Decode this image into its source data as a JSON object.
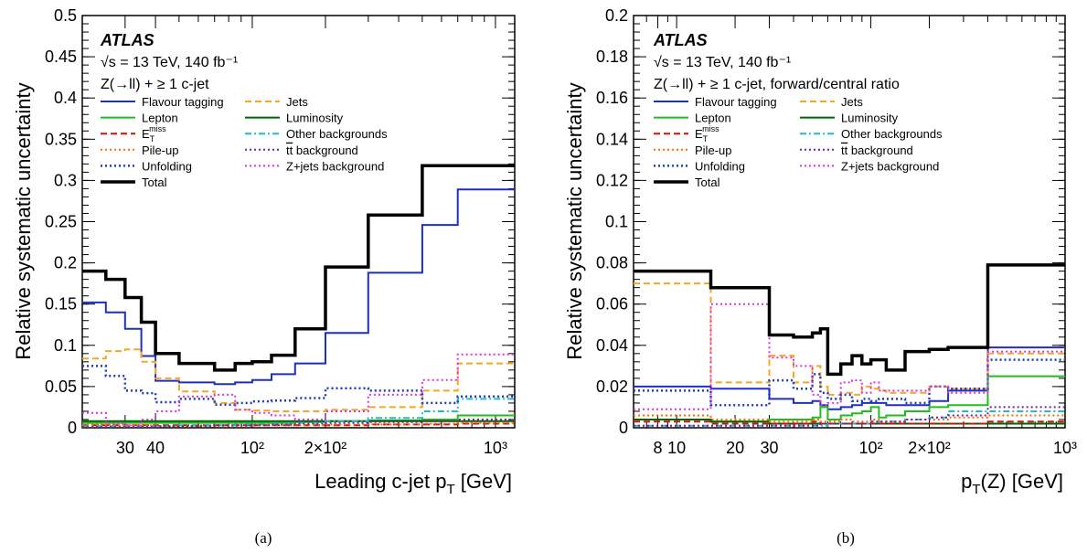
{
  "legend_labels": [
    "Flavour tagging",
    "Jets",
    "Lepton",
    "Luminosity",
    "E_T^miss",
    "Other backgrounds",
    "Pile-up",
    "tt background",
    "Unfolding",
    "Z+jets background",
    "Total"
  ],
  "chart_data": [
    {
      "type": "line",
      "subtitle": "(a)",
      "title": "ATLAS",
      "annotations": [
        "√s = 13 TeV, 140 fb⁻¹",
        "Z(→ll) + ≥ 1 c-jet"
      ],
      "xlabel": "Leading c-jet p_T [GeV]",
      "ylabel": "Relative systematic uncertainty",
      "xscale": "log",
      "xlim": [
        20,
        1200
      ],
      "ylim": [
        0,
        0.5
      ],
      "x_tick_labels": [
        "30",
        "40",
        "10²",
        "2×10²",
        "10³"
      ],
      "y_tick_labels": [
        "0",
        "0.05",
        "0.1",
        "0.15",
        "0.2",
        "0.25",
        "0.3",
        "0.35",
        "0.4",
        "0.45",
        "0.5"
      ],
      "legend_position": "top-left",
      "grid": false,
      "bin_edges": [
        20,
        25,
        30,
        35,
        40,
        50,
        70,
        85,
        100,
        120,
        150,
        200,
        300,
        500,
        700,
        1200
      ],
      "series": [
        {
          "name": "Flavour tagging",
          "color": "#1f2fbf",
          "style": "solid",
          "width": 2,
          "values": [
            0.152,
            0.14,
            0.12,
            0.087,
            0.057,
            0.055,
            0.053,
            0.055,
            0.058,
            0.065,
            0.078,
            0.115,
            0.188,
            0.246,
            0.289
          ]
        },
        {
          "name": "Jets",
          "color": "#f5a623",
          "style": "dashed",
          "width": 2,
          "values": [
            0.084,
            0.093,
            0.095,
            0.08,
            0.06,
            0.044,
            0.03,
            0.022,
            0.021,
            0.02,
            0.02,
            0.022,
            0.025,
            0.045,
            0.078
          ]
        },
        {
          "name": "Lepton",
          "color": "#22bb22",
          "style": "solid",
          "width": 2,
          "values": [
            0.006,
            0.006,
            0.006,
            0.006,
            0.006,
            0.006,
            0.006,
            0.006,
            0.006,
            0.006,
            0.007,
            0.008,
            0.009,
            0.01,
            0.015
          ]
        },
        {
          "name": "Luminosity",
          "color": "#006400",
          "style": "solid",
          "width": 2,
          "values": [
            0.008,
            0.008,
            0.008,
            0.008,
            0.008,
            0.008,
            0.008,
            0.008,
            0.008,
            0.008,
            0.008,
            0.008,
            0.008,
            0.008,
            0.008
          ]
        },
        {
          "name": "E_T^miss",
          "color": "#cc1111",
          "style": "dashed",
          "width": 2,
          "values": [
            0.003,
            0.003,
            0.003,
            0.003,
            0.003,
            0.003,
            0.003,
            0.003,
            0.003,
            0.003,
            0.003,
            0.003,
            0.004,
            0.004,
            0.005
          ]
        },
        {
          "name": "Other backgrounds",
          "color": "#22bbcc",
          "style": "dashdot",
          "width": 2,
          "values": [
            0.002,
            0.002,
            0.002,
            0.002,
            0.002,
            0.003,
            0.003,
            0.004,
            0.004,
            0.005,
            0.006,
            0.008,
            0.012,
            0.02,
            0.035
          ]
        },
        {
          "name": "Pile-up",
          "color": "#ff6a00",
          "style": "dotted",
          "width": 2,
          "values": [
            0.004,
            0.003,
            0.003,
            0.003,
            0.002,
            0.002,
            0.002,
            0.002,
            0.003,
            0.003,
            0.003,
            0.004,
            0.004,
            0.005,
            0.006
          ]
        },
        {
          "name": "tt background",
          "color": "#7a1fa2",
          "style": "dotted",
          "width": 2,
          "values": [
            0.001,
            0.001,
            0.001,
            0.001,
            0.002,
            0.002,
            0.003,
            0.003,
            0.003,
            0.004,
            0.005,
            0.006,
            0.007,
            0.008,
            0.01
          ]
        },
        {
          "name": "Unfolding",
          "color": "#1c3dbf",
          "style": "dotted",
          "width": 2.5,
          "values": [
            0.075,
            0.063,
            0.045,
            0.042,
            0.031,
            0.035,
            0.028,
            0.03,
            0.032,
            0.033,
            0.036,
            0.048,
            0.045,
            0.03,
            0.038
          ]
        },
        {
          "name": "Z+jets background",
          "color": "#e033e0",
          "style": "dotted",
          "width": 2,
          "values": [
            0.018,
            0.005,
            0.003,
            0.01,
            0.02,
            0.038,
            0.04,
            0.022,
            0.018,
            0.015,
            0.01,
            0.02,
            0.04,
            0.058,
            0.089
          ]
        },
        {
          "name": "Total",
          "color": "#000000",
          "style": "solid",
          "width": 3.5,
          "values": [
            0.19,
            0.18,
            0.158,
            0.128,
            0.09,
            0.078,
            0.07,
            0.078,
            0.08,
            0.088,
            0.12,
            0.195,
            0.258,
            0.318,
            0.318
          ]
        }
      ]
    },
    {
      "type": "line",
      "subtitle": "(b)",
      "title": "ATLAS",
      "annotations": [
        "√s = 13 TeV, 140 fb⁻¹",
        "Z(→ll) + ≥ 1 c-jet, forward/central ratio"
      ],
      "xlabel": "p_T(Z) [GeV]",
      "ylabel": "Relative systematic uncertainty",
      "xscale": "log",
      "xlim": [
        6,
        1000
      ],
      "ylim": [
        0,
        0.2
      ],
      "x_tick_labels": [
        "8",
        "10",
        "20",
        "30",
        "10²",
        "2×10²",
        "10³"
      ],
      "y_tick_labels": [
        "0",
        "0.02",
        "0.04",
        "0.06",
        "0.08",
        "0.1",
        "0.12",
        "0.14",
        "0.16",
        "0.18",
        "0.2"
      ],
      "legend_position": "top-left",
      "grid": false,
      "bin_edges": [
        6,
        15,
        30,
        40,
        50,
        55,
        60,
        70,
        80,
        90,
        100,
        110,
        120,
        150,
        200,
        250,
        400,
        1000
      ],
      "series": [
        {
          "name": "Flavour tagging",
          "color": "#1f2fbf",
          "style": "solid",
          "width": 2,
          "values": [
            0.02,
            0.019,
            0.014,
            0.012,
            0.013,
            0.011,
            0.009,
            0.01,
            0.011,
            0.012,
            0.012,
            0.012,
            0.011,
            0.011,
            0.013,
            0.018,
            0.039
          ]
        },
        {
          "name": "Jets",
          "color": "#f5a623",
          "style": "dashed",
          "width": 2,
          "values": [
            0.07,
            0.022,
            0.035,
            0.022,
            0.03,
            0.02,
            0.016,
            0.017,
            0.016,
            0.02,
            0.019,
            0.018,
            0.017,
            0.017,
            0.02,
            0.019,
            0.036
          ]
        },
        {
          "name": "Lepton",
          "color": "#22bb22",
          "style": "solid",
          "width": 2,
          "values": [
            0.004,
            0.003,
            0.004,
            0.004,
            0.005,
            0.01,
            0.004,
            0.006,
            0.007,
            0.008,
            0.01,
            0.005,
            0.006,
            0.008,
            0.01,
            0.011,
            0.025
          ]
        },
        {
          "name": "Luminosity",
          "color": "#006400",
          "style": "solid",
          "width": 2,
          "values": [
            0.004,
            0.003,
            0.002,
            0.002,
            0.002,
            0.002,
            0.002,
            0.002,
            0.002,
            0.002,
            0.002,
            0.002,
            0.002,
            0.002,
            0.002,
            0.002,
            0.002
          ]
        },
        {
          "name": "E_T^miss",
          "color": "#cc1111",
          "style": "dashed",
          "width": 2,
          "values": [
            0.003,
            0.002,
            0.002,
            0.002,
            0.003,
            0.002,
            0.002,
            0.002,
            0.002,
            0.002,
            0.002,
            0.002,
            0.002,
            0.002,
            0.002,
            0.002,
            0.003
          ]
        },
        {
          "name": "Other backgrounds",
          "color": "#22bbcc",
          "style": "dashdot",
          "width": 2,
          "values": [
            0.001,
            0.001,
            0.001,
            0.001,
            0.001,
            0.001,
            0.002,
            0.002,
            0.002,
            0.002,
            0.003,
            0.003,
            0.003,
            0.004,
            0.005,
            0.008,
            0.008
          ]
        },
        {
          "name": "Pile-up",
          "color": "#ff6a00",
          "style": "dotted",
          "width": 2,
          "values": [
            0.006,
            0.004,
            0.003,
            0.003,
            0.004,
            0.003,
            0.003,
            0.004,
            0.003,
            0.003,
            0.004,
            0.003,
            0.003,
            0.004,
            0.004,
            0.005,
            0.006
          ]
        },
        {
          "name": "tt background",
          "color": "#7a1fa2",
          "style": "dotted",
          "width": 2,
          "values": [
            0.001,
            0.001,
            0.001,
            0.001,
            0.001,
            0.002,
            0.002,
            0.002,
            0.002,
            0.002,
            0.003,
            0.003,
            0.003,
            0.004,
            0.005,
            0.006,
            0.01
          ]
        },
        {
          "name": "Unfolding",
          "color": "#1c3dbf",
          "style": "dotted",
          "width": 2.5,
          "values": [
            0.018,
            0.011,
            0.023,
            0.019,
            0.026,
            0.017,
            0.014,
            0.016,
            0.013,
            0.014,
            0.013,
            0.014,
            0.014,
            0.012,
            0.02,
            0.019,
            0.033
          ]
        },
        {
          "name": "Z+jets background",
          "color": "#e033e0",
          "style": "dotted",
          "width": 2,
          "values": [
            0.009,
            0.06,
            0.034,
            0.03,
            0.016,
            0.011,
            0.012,
            0.022,
            0.023,
            0.017,
            0.022,
            0.018,
            0.018,
            0.018,
            0.02,
            0.017,
            0.037
          ]
        },
        {
          "name": "Total",
          "color": "#000000",
          "style": "solid",
          "width": 3.5,
          "values": [
            0.076,
            0.068,
            0.045,
            0.044,
            0.046,
            0.048,
            0.026,
            0.031,
            0.035,
            0.031,
            0.033,
            0.033,
            0.028,
            0.037,
            0.038,
            0.039,
            0.079
          ]
        }
      ]
    }
  ]
}
